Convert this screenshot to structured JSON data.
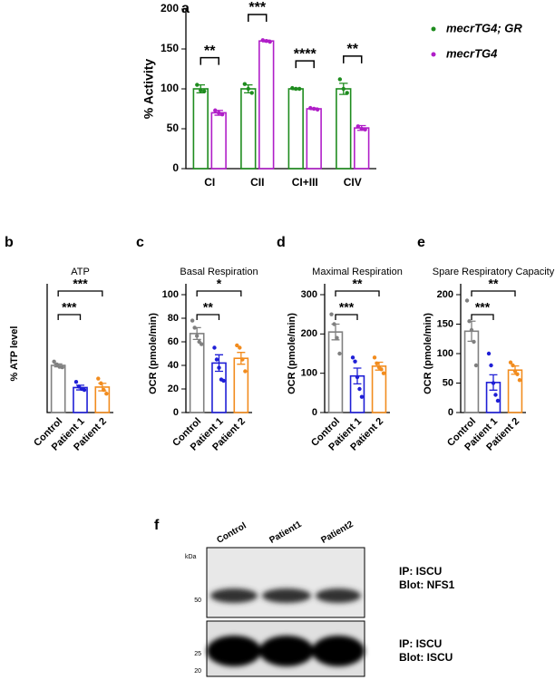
{
  "chart_data": [
    {
      "type": "bar",
      "panel": "a",
      "ylabel": "% Activity",
      "categories": [
        "CI",
        "CII",
        "CI+III",
        "CIV"
      ],
      "series": [
        {
          "name": "mecrTG4; GR",
          "color": "#1e8c1e",
          "values": [
            100,
            100,
            100,
            100
          ],
          "errors": [
            5,
            5,
            1,
            7
          ],
          "points": [
            [
              105,
              98,
              97
            ],
            [
              106,
              100,
              95
            ],
            [
              101,
              100,
              100
            ],
            [
              112,
              100,
              95
            ]
          ]
        },
        {
          "name": "mecrTG4",
          "color": "#b01ec8",
          "values": [
            70,
            160,
            75,
            51
          ],
          "errors": [
            3,
            1,
            1,
            3
          ],
          "points": [
            [
              73,
              70,
              68
            ],
            [
              161,
              160,
              159
            ],
            [
              76,
              75,
              74
            ],
            [
              53,
              50,
              49
            ]
          ]
        }
      ],
      "ylim": [
        0,
        200
      ],
      "yticks": [
        0,
        50,
        100,
        150,
        200
      ],
      "significance": [
        {
          "category": 0,
          "label": "**"
        },
        {
          "category": 1,
          "label": "***"
        },
        {
          "category": 2,
          "label": "****"
        },
        {
          "category": 3,
          "label": "**"
        }
      ]
    },
    {
      "type": "bar",
      "panel": "b",
      "title": "ATP",
      "ylabel": "% ATP level",
      "categories": [
        "Control",
        "Patient 1",
        "Patient 2"
      ],
      "colors": [
        "#808080",
        "#1f1fd6",
        "#f28c1e"
      ],
      "values": [
        100,
        53,
        54
      ],
      "errors": [
        3,
        5,
        8
      ],
      "points": [
        [
          108,
          102,
          97,
          96
        ],
        [
          65,
          55,
          50,
          48
        ],
        [
          72,
          62,
          48,
          40
        ]
      ],
      "ylim": [
        0,
        250
      ],
      "significance": [
        {
          "pair": [
            0,
            1
          ],
          "label": "***"
        },
        {
          "pair": [
            0,
            2
          ],
          "label": "***"
        }
      ]
    },
    {
      "type": "bar",
      "panel": "c",
      "title": "Basal Respiration",
      "ylabel": "OCR (pmole/min)",
      "categories": [
        "Control",
        "Patient 1",
        "Patient 2"
      ],
      "colors": [
        "#808080",
        "#1f1fd6",
        "#f28c1e"
      ],
      "values": [
        67,
        42,
        46
      ],
      "errors": [
        5,
        7,
        5
      ],
      "points": [
        [
          78,
          72,
          65,
          60,
          58
        ],
        [
          55,
          45,
          38,
          28,
          27
        ],
        [
          57,
          55,
          45,
          35
        ]
      ],
      "ylim": [
        0,
        100
      ],
      "yticks": [
        0,
        20,
        40,
        60,
        80,
        100
      ],
      "significance": [
        {
          "pair": [
            0,
            1
          ],
          "label": "**"
        },
        {
          "pair": [
            0,
            2
          ],
          "label": "*"
        }
      ]
    },
    {
      "type": "bar",
      "panel": "d",
      "title": "Maximal Respiration",
      "ylabel": "OCR (pmole/min)",
      "categories": [
        "Control",
        "Patient 1",
        "Patient 2"
      ],
      "colors": [
        "#808080",
        "#1f1fd6",
        "#f28c1e"
      ],
      "values": [
        205,
        93,
        118
      ],
      "errors": [
        20,
        20,
        10
      ],
      "points": [
        [
          250,
          225,
          190,
          150
        ],
        [
          140,
          130,
          90,
          60,
          40
        ],
        [
          140,
          125,
          115,
          110,
          100
        ]
      ],
      "ylim": [
        0,
        300
      ],
      "yticks": [
        0,
        100,
        200,
        300
      ],
      "significance": [
        {
          "pair": [
            0,
            1
          ],
          "label": "***"
        },
        {
          "pair": [
            0,
            2
          ],
          "label": "**"
        }
      ]
    },
    {
      "type": "bar",
      "panel": "e",
      "title": "Spare Respiratory Capacity",
      "ylabel": "OCR (pmole/min)",
      "categories": [
        "Control",
        "Patient 1",
        "Patient 2"
      ],
      "colors": [
        "#808080",
        "#1f1fd6",
        "#f28c1e"
      ],
      "values": [
        138,
        51,
        72
      ],
      "errors": [
        17,
        13,
        7
      ],
      "points": [
        [
          190,
          155,
          140,
          120,
          80
        ],
        [
          100,
          80,
          50,
          30,
          20
        ],
        [
          85,
          80,
          70,
          65,
          55
        ]
      ],
      "ylim": [
        0,
        200
      ],
      "yticks": [
        0,
        50,
        100,
        150,
        200
      ],
      "significance": [
        {
          "pair": [
            0,
            1
          ],
          "label": "***"
        },
        {
          "pair": [
            0,
            2
          ],
          "label": "**"
        }
      ]
    }
  ],
  "blot": {
    "panel": "f",
    "unit": "kDa",
    "lanes": [
      "Control",
      "Patient1",
      "Patient2"
    ],
    "markers_top": [
      "50"
    ],
    "markers_bottom": [
      "25",
      "20"
    ],
    "labels_top": [
      "IP: ISCU",
      "Blot: NFS1"
    ],
    "labels_bottom": [
      "IP: ISCU",
      "Blot: ISCU"
    ]
  }
}
